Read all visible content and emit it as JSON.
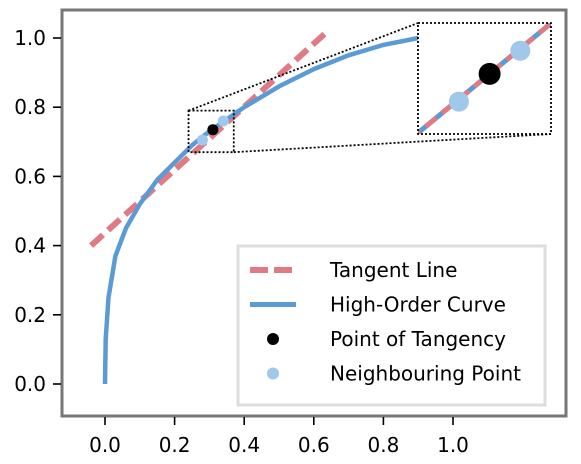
{
  "chart_data": {
    "type": "line",
    "title": "",
    "xlabel": "",
    "ylabel": "",
    "xlim": [
      -0.13,
      1.3
    ],
    "ylim": [
      -0.08,
      1.09
    ],
    "x_ticks": [
      "0.0",
      "0.2",
      "0.4",
      "0.6",
      "0.8",
      "1.0"
    ],
    "y_ticks": [
      "0.0",
      "0.2",
      "0.4",
      "0.6",
      "0.8",
      "1.0"
    ],
    "grid": false,
    "legend_position": "lower-right",
    "colors": {
      "curve": "#5b9bd5",
      "tangent": "#e07a85",
      "point": "#000000",
      "neighbour": "#9fc8ea",
      "frame": "#777777"
    },
    "series": [
      {
        "name": "Tangent Line",
        "kind": "dashed-line",
        "x": [
          -0.04,
          0.64
        ],
        "y": [
          0.4,
          1.02
        ]
      },
      {
        "name": "High-Order Curve",
        "kind": "line",
        "x": [
          0.0,
          0.002,
          0.01,
          0.03,
          0.06,
          0.1,
          0.15,
          0.2,
          0.25,
          0.3,
          0.35,
          0.4,
          0.5,
          0.6,
          0.7,
          0.8,
          0.9
        ],
        "y": [
          0.0,
          0.13,
          0.25,
          0.37,
          0.45,
          0.52,
          0.59,
          0.64,
          0.69,
          0.73,
          0.765,
          0.8,
          0.86,
          0.91,
          0.95,
          0.98,
          1.0
        ]
      },
      {
        "name": "Point of Tangency",
        "kind": "point",
        "x": [
          0.31
        ],
        "y": [
          0.735
        ]
      },
      {
        "name": "Neighbouring Point",
        "kind": "point",
        "x": [
          0.28,
          0.34
        ],
        "y": [
          0.705,
          0.76
        ]
      }
    ],
    "inset": {
      "source_xlim": [
        0.24,
        0.37
      ],
      "source_ylim": [
        0.67,
        0.79
      ]
    },
    "legend": [
      {
        "label": "Tangent Line",
        "marker": "dashed-line",
        "color": "#e07a85"
      },
      {
        "label": "High-Order Curve",
        "marker": "line",
        "color": "#5b9bd5"
      },
      {
        "label": "Point of Tangency",
        "marker": "dot",
        "color": "#000000"
      },
      {
        "label": "Neighbouring Point",
        "marker": "dot",
        "color": "#9fc8ea"
      }
    ]
  }
}
